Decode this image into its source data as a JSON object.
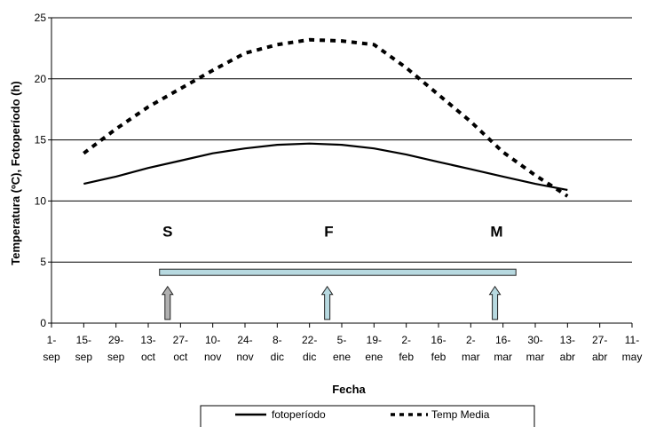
{
  "chart_data": {
    "type": "line",
    "title": "",
    "xlabel": "Fecha",
    "ylabel": "Temperatura (ºC), Fotoperíodo (h)",
    "ylim": [
      0,
      25
    ],
    "yticks": [
      0,
      5,
      10,
      15,
      20,
      25
    ],
    "grid": true,
    "categories": [
      [
        "1-",
        "sep"
      ],
      [
        "15-",
        "sep"
      ],
      [
        "29-",
        "sep"
      ],
      [
        "13-",
        "oct"
      ],
      [
        "27-",
        "oct"
      ],
      [
        "10-",
        "nov"
      ],
      [
        "24-",
        "nov"
      ],
      [
        "8-",
        "dic"
      ],
      [
        "22-",
        "dic"
      ],
      [
        "5-",
        "ene"
      ],
      [
        "19-",
        "ene"
      ],
      [
        "2-",
        "feb"
      ],
      [
        "16-",
        "feb"
      ],
      [
        "2-",
        "mar"
      ],
      [
        "16-",
        "mar"
      ],
      [
        "30-",
        "mar"
      ],
      [
        "13-",
        "abr"
      ],
      [
        "27-",
        "abr"
      ],
      [
        "11-",
        "may"
      ]
    ],
    "series": [
      {
        "name": "fotoperíodo",
        "style": "solid",
        "color": "#000000",
        "points": [
          [
            1,
            11.4
          ],
          [
            2,
            12.0
          ],
          [
            3,
            12.7
          ],
          [
            4,
            13.3
          ],
          [
            5,
            13.9
          ],
          [
            6,
            14.3
          ],
          [
            7,
            14.6
          ],
          [
            8,
            14.7
          ],
          [
            9,
            14.6
          ],
          [
            10,
            14.3
          ],
          [
            11,
            13.8
          ],
          [
            12,
            13.2
          ],
          [
            13,
            12.6
          ],
          [
            14,
            12.0
          ],
          [
            15,
            11.4
          ],
          [
            16,
            10.9
          ]
        ]
      },
      {
        "name": "Temp Media",
        "style": "dashed",
        "color": "#000000",
        "points": [
          [
            1,
            13.9
          ],
          [
            2,
            15.9
          ],
          [
            3,
            17.7
          ],
          [
            4,
            19.2
          ],
          [
            5,
            20.7
          ],
          [
            6,
            22.1
          ],
          [
            7,
            22.8
          ],
          [
            8,
            23.2
          ],
          [
            9,
            23.1
          ],
          [
            10,
            22.8
          ],
          [
            11,
            20.9
          ],
          [
            12,
            18.7
          ],
          [
            13,
            16.5
          ],
          [
            14,
            14.0
          ],
          [
            15,
            12.1
          ],
          [
            16,
            10.4
          ]
        ]
      }
    ],
    "annotations": {
      "phases": [
        {
          "label": "S",
          "x": 3.6,
          "y": 7.1
        },
        {
          "label": "F",
          "x": 8.6,
          "y": 7.1
        },
        {
          "label": "M",
          "x": 13.8,
          "y": 7.1
        }
      ],
      "bar": {
        "x_start": 3.35,
        "x_end": 14.4,
        "y": 4.2,
        "color": "#b7d9e0"
      },
      "arrows": [
        {
          "x": 3.6,
          "y_from": 0.3,
          "y_to": 3.0,
          "color": "#b0b0b0"
        },
        {
          "x": 8.55,
          "y_from": 0.3,
          "y_to": 3.0,
          "color": "#b7d9e0"
        },
        {
          "x": 13.75,
          "y_from": 0.3,
          "y_to": 3.0,
          "color": "#b7d9e0"
        }
      ]
    },
    "legend": {
      "placement": "bottom",
      "entries": [
        {
          "name": "fotoperíodo",
          "style": "solid"
        },
        {
          "name": "Temp Media",
          "style": "dashed"
        }
      ]
    }
  }
}
